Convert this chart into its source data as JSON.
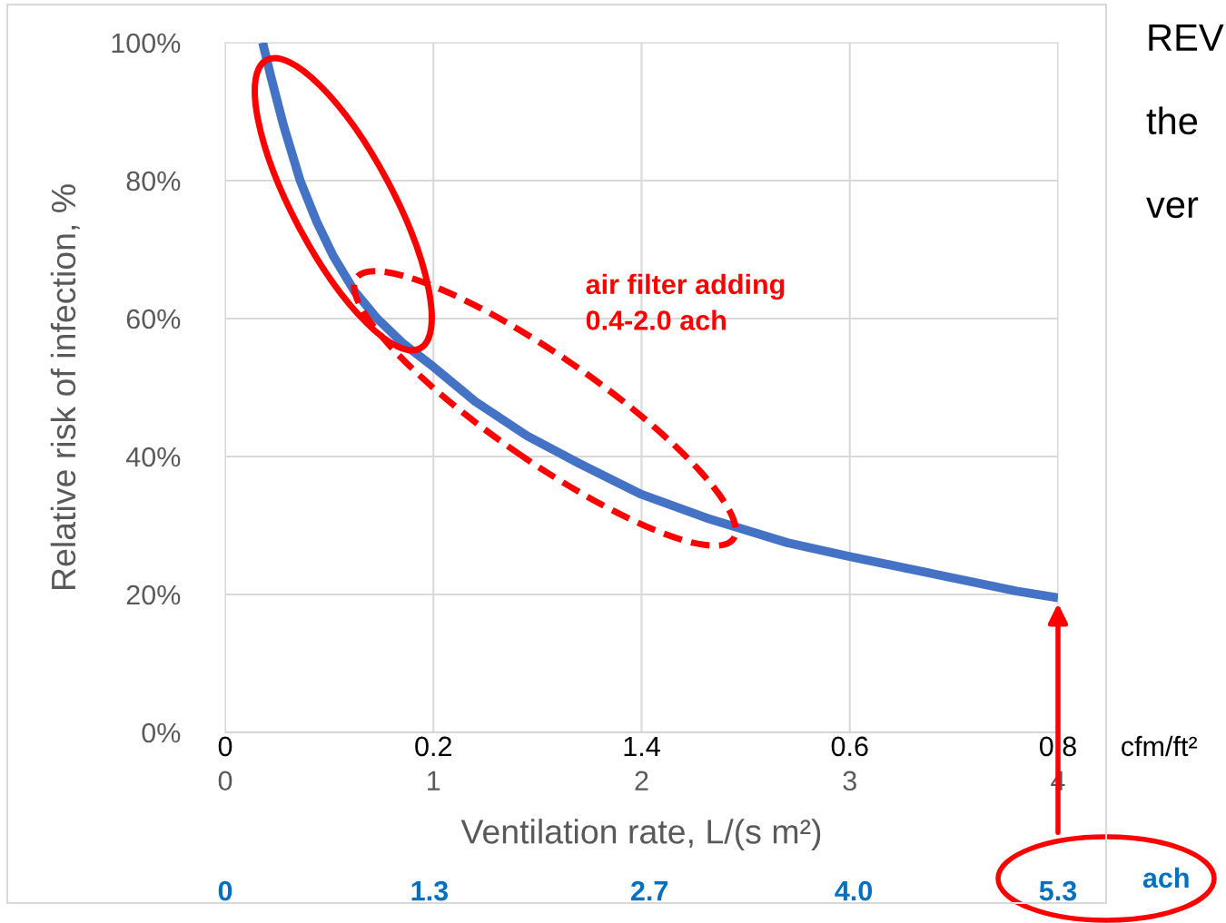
{
  "chart_data": {
    "type": "line",
    "xlabel": "Ventilation rate, L/(s m²)",
    "ylabel": "Relative risk of infection, %",
    "x": [
      0.18,
      0.22,
      0.28,
      0.36,
      0.44,
      0.52,
      0.62,
      0.73,
      0.85,
      1.0,
      1.2,
      1.45,
      1.7,
      2.0,
      2.32,
      2.7,
      3.0,
      3.4,
      3.8,
      4.0
    ],
    "series": [
      {
        "color": "#4472c4",
        "values": [
          100,
          95,
          88,
          80,
          74,
          69,
          64,
          60,
          56.5,
          53,
          48,
          43,
          39,
          34.5,
          31,
          27.5,
          25.5,
          23,
          20.5,
          19.5
        ]
      }
    ],
    "xlim": [
      0,
      4
    ],
    "xticks": [
      0,
      1,
      2,
      3,
      4
    ],
    "ylim": [
      0,
      100
    ],
    "yticks": [
      {
        "value": 0,
        "label": "0%"
      },
      {
        "value": 20,
        "label": "20%"
      },
      {
        "value": 40,
        "label": "40%"
      },
      {
        "value": 60,
        "label": "60%"
      },
      {
        "value": 80,
        "label": "80%"
      },
      {
        "value": 100,
        "label": "100%"
      }
    ],
    "x2label": "ach",
    "x2lim": [
      0,
      5.3
    ],
    "x2ticks": [
      0,
      1.3,
      2.7,
      {
        "value": 4.0,
        "label": "4.0"
      },
      5.3
    ],
    "grid": true,
    "annotations": [
      "air filter adding\n0.4-2.0 ach",
      "0",
      "0.2",
      "1.4",
      "0.6",
      "0.8",
      "cfm/ft²",
      "REV",
      "the",
      "ver"
    ]
  }
}
